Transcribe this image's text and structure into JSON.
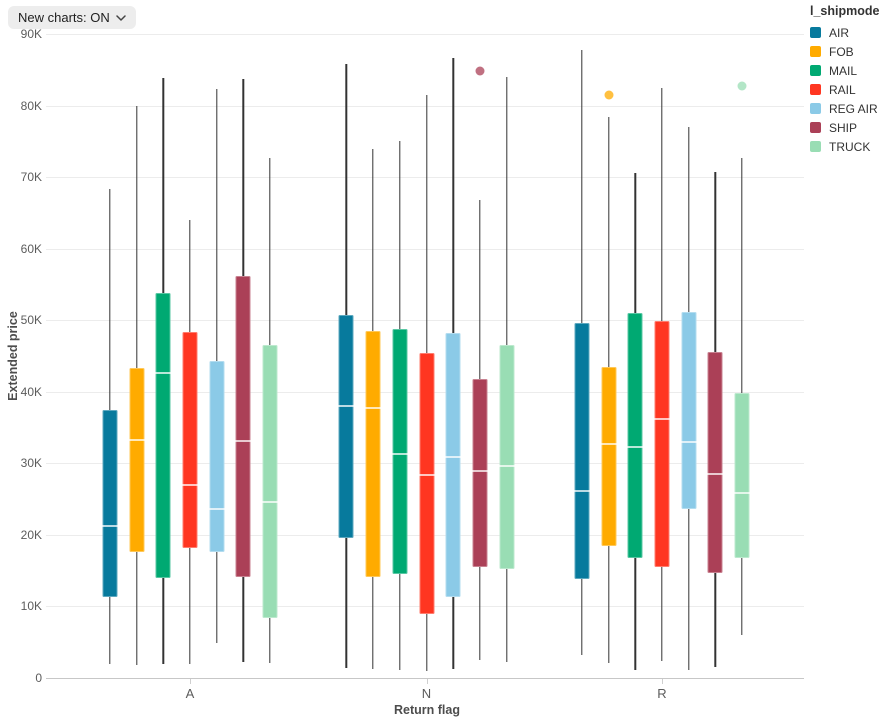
{
  "toolbar": {
    "new_charts_label": "New charts: ON"
  },
  "chart_data": {
    "type": "boxplot",
    "xlabel": "Return flag",
    "ylabel": "Extended price",
    "legend_title": "l_shipmode",
    "legend_position": "top-right",
    "grid": true,
    "ylim": [
      0,
      90000
    ],
    "y_ticks": [
      "0",
      "10K",
      "20K",
      "30K",
      "40K",
      "50K",
      "60K",
      "70K",
      "80K",
      "90K"
    ],
    "y_tick_values": [
      0,
      10000,
      20000,
      30000,
      40000,
      50000,
      60000,
      70000,
      80000,
      90000
    ],
    "categories": [
      "A",
      "N",
      "R"
    ],
    "styles": {
      "whisker_color": "#333333",
      "gridline_color": "#ececec",
      "axis_line_color": "#c7c7c7",
      "median_line_color": "rgba(255,255,255,0.72)"
    },
    "series": [
      {
        "name": "AIR",
        "color": "#077A9D",
        "boxes": [
          {
            "category": "A",
            "low": 2000,
            "q1": 11300,
            "median": 21200,
            "q3": 37400,
            "high": 68300,
            "outliers": []
          },
          {
            "category": "N",
            "low": 1400,
            "q1": 19600,
            "median": 38000,
            "q3": 50700,
            "high": 85800,
            "outliers": []
          },
          {
            "category": "R",
            "low": 3200,
            "q1": 13800,
            "median": 26100,
            "q3": 49600,
            "high": 87800,
            "outliers": []
          }
        ]
      },
      {
        "name": "FOB",
        "color": "#FFAB00",
        "boxes": [
          {
            "category": "A",
            "low": 1800,
            "q1": 17600,
            "median": 33300,
            "q3": 43300,
            "high": 79900,
            "outliers": []
          },
          {
            "category": "N",
            "low": 1300,
            "q1": 14100,
            "median": 37700,
            "q3": 48500,
            "high": 73900,
            "outliers": []
          },
          {
            "category": "R",
            "low": 2100,
            "q1": 18400,
            "median": 32700,
            "q3": 43500,
            "high": 78400,
            "outliers": [
              81500
            ]
          }
        ]
      },
      {
        "name": "MAIL",
        "color": "#00A972",
        "boxes": [
          {
            "category": "A",
            "low": 2000,
            "q1": 14000,
            "median": 42600,
            "q3": 53800,
            "high": 83800,
            "outliers": []
          },
          {
            "category": "N",
            "low": 1100,
            "q1": 14500,
            "median": 31300,
            "q3": 48800,
            "high": 75000,
            "outliers": []
          },
          {
            "category": "R",
            "low": 1100,
            "q1": 16800,
            "median": 32300,
            "q3": 51000,
            "high": 70600,
            "outliers": []
          }
        ]
      },
      {
        "name": "RAIL",
        "color": "#FF3621",
        "boxes": [
          {
            "category": "A",
            "low": 2000,
            "q1": 18200,
            "median": 27000,
            "q3": 48400,
            "high": 64000,
            "outliers": []
          },
          {
            "category": "N",
            "low": 1000,
            "q1": 8900,
            "median": 28400,
            "q3": 45400,
            "high": 81500,
            "outliers": []
          },
          {
            "category": "R",
            "low": 2400,
            "q1": 15500,
            "median": 36200,
            "q3": 49900,
            "high": 82400,
            "outliers": []
          }
        ]
      },
      {
        "name": "REG AIR",
        "color": "#8BCAE7",
        "boxes": [
          {
            "category": "A",
            "low": 4900,
            "q1": 17600,
            "median": 23600,
            "q3": 44300,
            "high": 82300,
            "outliers": []
          },
          {
            "category": "N",
            "low": 1300,
            "q1": 11300,
            "median": 30900,
            "q3": 48200,
            "high": 86600,
            "outliers": []
          },
          {
            "category": "R",
            "low": 1100,
            "q1": 23600,
            "median": 33000,
            "q3": 51100,
            "high": 77000,
            "outliers": []
          }
        ]
      },
      {
        "name": "SHIP",
        "color": "#AB4057",
        "boxes": [
          {
            "category": "A",
            "low": 2200,
            "q1": 14100,
            "median": 33100,
            "q3": 56200,
            "high": 83700,
            "outliers": []
          },
          {
            "category": "N",
            "low": 2500,
            "q1": 15500,
            "median": 28900,
            "q3": 41800,
            "high": 66800,
            "outliers": [
              84800
            ]
          },
          {
            "category": "R",
            "low": 1500,
            "q1": 14700,
            "median": 28500,
            "q3": 45600,
            "high": 70700,
            "outliers": []
          }
        ]
      },
      {
        "name": "TRUCK",
        "color": "#99DDB4",
        "boxes": [
          {
            "category": "A",
            "low": 2100,
            "q1": 8400,
            "median": 24600,
            "q3": 46500,
            "high": 72700,
            "outliers": []
          },
          {
            "category": "N",
            "low": 2200,
            "q1": 15200,
            "median": 29600,
            "q3": 46500,
            "high": 84000,
            "outliers": []
          },
          {
            "category": "R",
            "low": 6000,
            "q1": 16800,
            "median": 25900,
            "q3": 39800,
            "high": 72700,
            "outliers": [
              82700
            ]
          }
        ]
      }
    ]
  }
}
